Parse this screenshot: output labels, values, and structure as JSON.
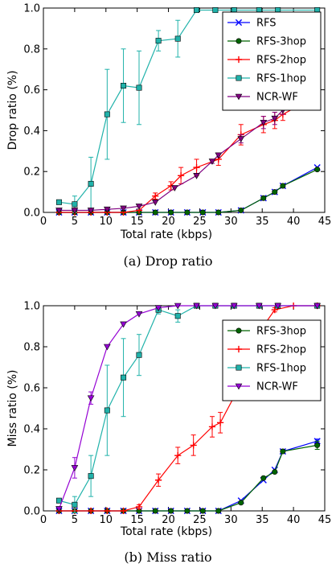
{
  "chart_data": [
    {
      "type": "line",
      "caption": "(a) Drop ratio",
      "xlabel": "Total rate (kbps)",
      "ylabel": "Drop ratio (%)",
      "xlim": [
        0,
        45
      ],
      "ylim": [
        0,
        1.0
      ],
      "xticks": [
        0,
        5,
        10,
        15,
        20,
        25,
        30,
        35,
        40,
        45
      ],
      "yticks": [
        0.0,
        0.2,
        0.4,
        0.6,
        0.8,
        1.0
      ],
      "grid": false,
      "legend_position": "top-right",
      "series": [
        {
          "name": "RFS",
          "color": "#0000ff",
          "marker": "x",
          "x": [
            2.5,
            5,
            7.6,
            10.2,
            12.8,
            15.3,
            17.9,
            20.4,
            23,
            25.5,
            28,
            31.6,
            35.2,
            37,
            38.3,
            43.8
          ],
          "y": [
            0,
            0,
            0,
            0,
            0,
            0,
            0,
            0,
            0,
            0,
            0,
            0.01,
            0.07,
            0.1,
            0.13,
            0.22
          ],
          "err": []
        },
        {
          "name": "RFS-3hop",
          "color": "#006400",
          "marker": "o",
          "x": [
            2.5,
            5,
            7.6,
            10.2,
            12.8,
            15.3,
            17.9,
            20.4,
            23,
            25.5,
            28,
            31.6,
            35.2,
            37,
            38.3,
            43.8
          ],
          "y": [
            0,
            0,
            0,
            0,
            0,
            0,
            0,
            0,
            0,
            0,
            0,
            0.01,
            0.07,
            0.1,
            0.13,
            0.21
          ],
          "err": []
        },
        {
          "name": "RFS-2hop",
          "color": "#ff0000",
          "marker": "+",
          "x": [
            2.5,
            5,
            7.6,
            10.2,
            12.8,
            15.3,
            17.9,
            20.4,
            22,
            24.5,
            28,
            31.6,
            35.2,
            37,
            38.3,
            43.8
          ],
          "y": [
            0,
            0,
            0,
            0,
            0,
            0.01,
            0.08,
            0.13,
            0.18,
            0.22,
            0.26,
            0.38,
            0.43,
            0.45,
            0.48,
            0.57
          ],
          "err": [
            0,
            0,
            0,
            0,
            0,
            0,
            0.015,
            0.02,
            0.04,
            0.04,
            0.03,
            0.05,
            0.04,
            0.04,
            0.03,
            0.03
          ]
        },
        {
          "name": "RFS-1hop",
          "color": "#20b2aa",
          "marker": "s",
          "x": [
            2.5,
            5,
            7.6,
            10.2,
            12.8,
            15.3,
            18.4,
            21.5,
            24.5,
            27.5,
            30.5,
            34.5,
            37.5,
            43.8
          ],
          "y": [
            0.05,
            0.04,
            0.14,
            0.48,
            0.62,
            0.61,
            0.84,
            0.85,
            0.99,
            0.99,
            0.99,
            0.99,
            0.99,
            0.99
          ],
          "err": [
            0,
            0.04,
            0.13,
            0.22,
            0.18,
            0.18,
            0.05,
            0.09,
            0.01,
            0.005,
            0,
            0,
            0,
            0
          ]
        },
        {
          "name": "NCR-WF",
          "color": "#800080",
          "marker": "v",
          "x": [
            2.5,
            5,
            7.6,
            10.2,
            12.8,
            15.3,
            17.9,
            21,
            24.5,
            27,
            28,
            31.6,
            35.2,
            37,
            38.3,
            43.8
          ],
          "y": [
            0.01,
            0.01,
            0.01,
            0.015,
            0.02,
            0.03,
            0.05,
            0.12,
            0.18,
            0.25,
            0.28,
            0.36,
            0.44,
            0.46,
            0.5,
            0.59
          ],
          "err": [
            0,
            0,
            0,
            0,
            0,
            0,
            0,
            0,
            0,
            0.01,
            0.01,
            0.02,
            0.03,
            0.03,
            0.02,
            0.01
          ]
        }
      ]
    },
    {
      "type": "line",
      "caption": "(b) Miss ratio",
      "xlabel": "Total rate (kbps)",
      "ylabel": "Miss ratio (%)",
      "xlim": [
        0,
        45
      ],
      "ylim": [
        0,
        1.0
      ],
      "xticks": [
        0,
        5,
        10,
        15,
        20,
        25,
        30,
        35,
        40,
        45
      ],
      "yticks": [
        0.0,
        0.2,
        0.4,
        0.6,
        0.8,
        1.0
      ],
      "grid": false,
      "legend_position": "top-right",
      "series": [
        {
          "name": "",
          "color": "#0000ff",
          "marker": "x",
          "x": [
            2.5,
            5,
            7.6,
            10.2,
            12.8,
            15.3,
            17.9,
            20.4,
            23,
            25.5,
            28,
            31.6,
            35.2,
            37,
            38.3,
            43.8
          ],
          "y": [
            0,
            0,
            0,
            0,
            0,
            0,
            0,
            0,
            0,
            0,
            0,
            0.05,
            0.15,
            0.2,
            0.29,
            0.34
          ],
          "err": [
            0,
            0,
            0,
            0,
            0,
            0,
            0,
            0,
            0,
            0,
            0,
            0,
            0,
            0,
            0,
            0.01
          ]
        },
        {
          "name": "RFS-3hop",
          "color": "#006400",
          "marker": "o",
          "x": [
            2.5,
            5,
            7.6,
            10.2,
            12.8,
            15.3,
            17.9,
            20.4,
            23,
            25.5,
            28,
            31.6,
            35.2,
            37,
            38.3,
            43.8
          ],
          "y": [
            0,
            0,
            0,
            0,
            0,
            0,
            0,
            0,
            0,
            0,
            0,
            0.04,
            0.16,
            0.19,
            0.29,
            0.32
          ],
          "err": [
            0,
            0,
            0,
            0,
            0,
            0,
            0,
            0,
            0,
            0,
            0,
            0,
            0,
            0,
            0,
            0.02
          ]
        },
        {
          "name": "RFS-2hop",
          "color": "#ff0000",
          "marker": "+",
          "x": [
            2.5,
            5,
            7.6,
            10.2,
            12.8,
            15.3,
            18.4,
            21.5,
            24,
            27,
            28.3,
            31.6,
            34,
            37,
            40,
            43.8
          ],
          "y": [
            0,
            0,
            0,
            0,
            0,
            0.02,
            0.15,
            0.27,
            0.32,
            0.41,
            0.43,
            0.62,
            0.85,
            0.98,
            1.0,
            1.0
          ],
          "err": [
            0,
            0,
            0,
            0,
            0,
            0.01,
            0.03,
            0.04,
            0.05,
            0.05,
            0.05,
            0.05,
            0.03,
            0.01,
            0,
            0
          ]
        },
        {
          "name": "RFS-1hop",
          "color": "#20b2aa",
          "marker": "s",
          "x": [
            2.5,
            5,
            7.6,
            10.2,
            12.8,
            15.3,
            18.4,
            21.5,
            24.5,
            27.5,
            30.5,
            34.5,
            37.5,
            43.8
          ],
          "y": [
            0.05,
            0.03,
            0.17,
            0.49,
            0.65,
            0.76,
            0.98,
            0.95,
            1.0,
            1.0,
            1.0,
            1.0,
            1.0,
            1.0
          ],
          "err": [
            0,
            0.04,
            0.1,
            0.22,
            0.19,
            0.1,
            0.02,
            0.03,
            0,
            0,
            0,
            0,
            0,
            0
          ]
        },
        {
          "name": "NCR-WF",
          "color": "#9400d3",
          "marker": "v",
          "x": [
            2.5,
            5,
            7.6,
            10.2,
            12.8,
            15.3,
            18.4,
            21.5,
            24.5,
            27.5,
            30.5,
            34.5,
            37.5,
            43.8
          ],
          "y": [
            0.01,
            0.21,
            0.55,
            0.8,
            0.91,
            0.96,
            0.99,
            1.0,
            1.0,
            1.0,
            1.0,
            1.0,
            1.0,
            1.0
          ],
          "err": [
            0,
            0.05,
            0.03,
            0,
            0,
            0,
            0,
            0,
            0,
            0,
            0,
            0,
            0,
            0
          ]
        }
      ]
    }
  ]
}
